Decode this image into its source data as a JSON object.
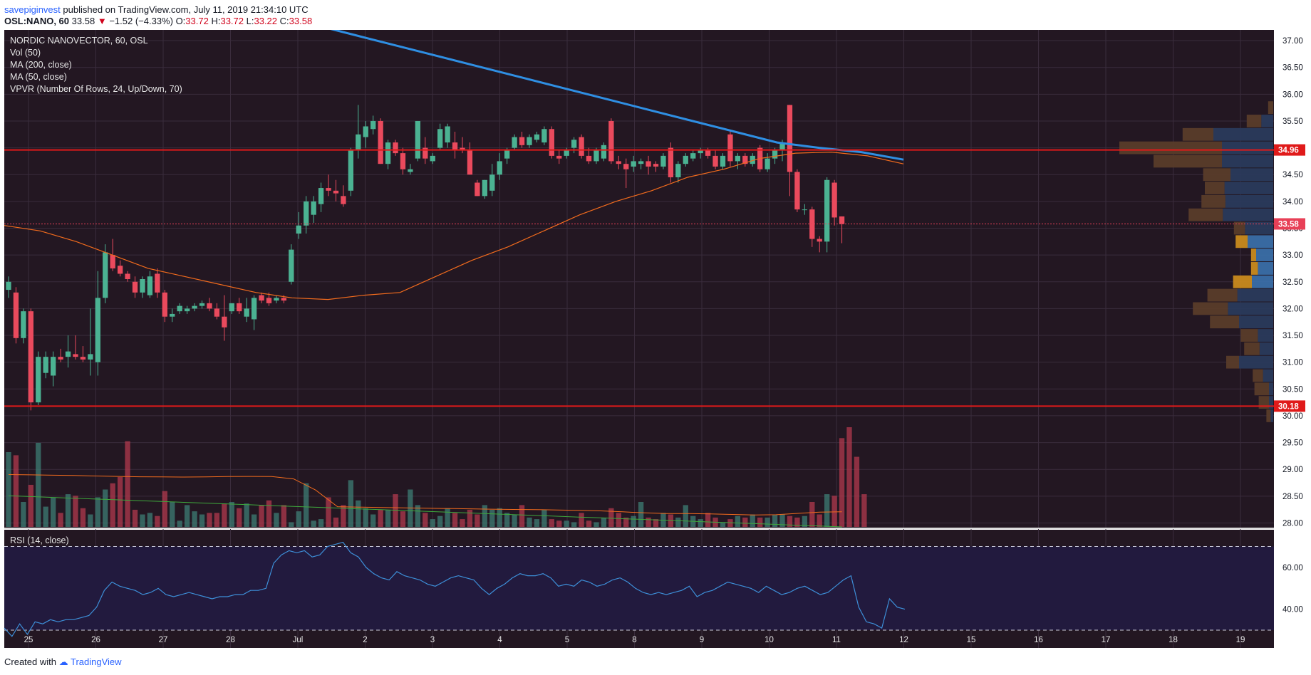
{
  "header": {
    "publisher": "savepiginvest",
    "published_text": "published on TradingView.com, July 11, 2019 21:34:10 UTC",
    "symbol": "OSL:NANO, 60",
    "last": "33.58",
    "arrow": "▼",
    "change": "−1.52 (−4.33%)",
    "open_label": "O:",
    "open": "33.72",
    "high_label": "H:",
    "high": "33.72",
    "low_label": "L:",
    "low": "33.22",
    "close_label": "C:",
    "close": "33.58"
  },
  "legend": [
    "NORDIC NANOVECTOR, 60, OSL",
    "Vol (50)",
    "MA (200, close)",
    "MA (50, close)",
    "VPVR (Number Of Rows, 24, Up/Down, 70)"
  ],
  "rsi_label": "RSI (14, close)",
  "footer": {
    "created_with": "Created with",
    "brand": "TradingView"
  },
  "colors": {
    "bg_main": "#231722",
    "bg_rsi": "#221a3e",
    "up": "#4bb292",
    "down": "#ea4a5d",
    "ma200": "#2f8fe3",
    "ma50": "#f26b1d",
    "rsi": "#3d8fd8",
    "level": "#e01a1a",
    "last_price": "#e84057"
  },
  "chart_data": {
    "type": "candlestick",
    "title": "NORDIC NANOVECTOR, 60, OSL",
    "x_ticks": [
      "25",
      "26",
      "27",
      "28",
      "Jul",
      "2",
      "3",
      "4",
      "5",
      "8",
      "9",
      "10",
      "11",
      "12",
      "15",
      "16",
      "17",
      "18",
      "19"
    ],
    "y_ticks": [
      "37.00",
      "36.50",
      "36.00",
      "35.50",
      "35.00",
      "34.50",
      "34.00",
      "33.50",
      "33.00",
      "32.50",
      "32.00",
      "31.50",
      "31.00",
      "30.50",
      "30.00",
      "29.50",
      "29.00",
      "28.50",
      "28.00"
    ],
    "ylim": [
      27.9,
      37.2
    ],
    "levels": [
      34.96,
      30.18
    ],
    "last_price": 33.58,
    "level_labels": [
      "34.96",
      "30.18"
    ],
    "last_price_label": "33.58",
    "days": [
      "25",
      "26",
      "27",
      "28",
      "Jul",
      "2",
      "3",
      "4",
      "5",
      "8",
      "9",
      "10",
      "11"
    ],
    "candles": [
      {
        "o": 32.35,
        "h": 32.6,
        "l": 32.2,
        "c": 32.5
      },
      {
        "o": 32.3,
        "h": 32.4,
        "l": 31.35,
        "c": 31.45
      },
      {
        "o": 31.45,
        "h": 32.0,
        "l": 31.35,
        "c": 31.95
      },
      {
        "o": 31.95,
        "h": 32.0,
        "l": 30.1,
        "c": 30.25
      },
      {
        "o": 30.25,
        "h": 31.2,
        "l": 30.2,
        "c": 31.1
      },
      {
        "o": 30.8,
        "h": 31.2,
        "l": 30.7,
        "c": 31.1
      },
      {
        "o": 30.75,
        "h": 31.2,
        "l": 30.55,
        "c": 31.1
      },
      {
        "o": 31.1,
        "h": 31.25,
        "l": 31.0,
        "c": 31.05
      },
      {
        "o": 31.1,
        "h": 31.5,
        "l": 30.9,
        "c": 31.2
      },
      {
        "o": 31.15,
        "h": 31.5,
        "l": 31.05,
        "c": 31.1
      },
      {
        "o": 31.1,
        "h": 31.3,
        "l": 31.0,
        "c": 31.05
      },
      {
        "o": 31.05,
        "h": 32.0,
        "l": 30.75,
        "c": 31.15
      },
      {
        "o": 31.0,
        "h": 32.7,
        "l": 30.75,
        "c": 32.2
      },
      {
        "o": 32.2,
        "h": 33.2,
        "l": 32.1,
        "c": 33.05
      },
      {
        "o": 33.0,
        "h": 33.3,
        "l": 32.7,
        "c": 32.75
      },
      {
        "o": 32.8,
        "h": 32.9,
        "l": 32.6,
        "c": 32.65
      },
      {
        "o": 32.65,
        "h": 32.7,
        "l": 32.5,
        "c": 32.55
      },
      {
        "o": 32.5,
        "h": 32.6,
        "l": 32.2,
        "c": 32.3
      },
      {
        "o": 32.3,
        "h": 32.6,
        "l": 32.2,
        "c": 32.55
      },
      {
        "o": 32.25,
        "h": 32.7,
        "l": 32.2,
        "c": 32.6
      },
      {
        "o": 32.65,
        "h": 32.75,
        "l": 32.2,
        "c": 32.3
      },
      {
        "o": 32.3,
        "h": 32.35,
        "l": 31.75,
        "c": 31.85
      },
      {
        "o": 31.85,
        "h": 32.0,
        "l": 31.75,
        "c": 31.9
      },
      {
        "o": 31.95,
        "h": 32.1,
        "l": 31.9,
        "c": 32.05
      },
      {
        "o": 31.95,
        "h": 32.05,
        "l": 31.9,
        "c": 32.0
      },
      {
        "o": 32.0,
        "h": 32.1,
        "l": 31.95,
        "c": 32.05
      },
      {
        "o": 32.05,
        "h": 32.15,
        "l": 32.0,
        "c": 32.1
      },
      {
        "o": 32.1,
        "h": 32.2,
        "l": 31.95,
        "c": 32.0
      },
      {
        "o": 32.0,
        "h": 32.1,
        "l": 31.8,
        "c": 31.85
      },
      {
        "o": 31.85,
        "h": 32.25,
        "l": 31.4,
        "c": 31.65
      },
      {
        "o": 31.95,
        "h": 32.1,
        "l": 31.9,
        "c": 32.1
      },
      {
        "o": 32.1,
        "h": 32.2,
        "l": 31.9,
        "c": 31.95
      },
      {
        "o": 31.85,
        "h": 32.2,
        "l": 31.75,
        "c": 32.0
      },
      {
        "o": 31.8,
        "h": 32.25,
        "l": 31.6,
        "c": 32.2
      },
      {
        "o": 32.25,
        "h": 32.3,
        "l": 32.1,
        "c": 32.15
      },
      {
        "o": 32.2,
        "h": 32.3,
        "l": 32.05,
        "c": 32.1
      },
      {
        "o": 32.15,
        "h": 32.25,
        "l": 32.1,
        "c": 32.2
      },
      {
        "o": 32.2,
        "h": 32.25,
        "l": 32.1,
        "c": 32.15
      },
      {
        "o": 32.5,
        "h": 33.2,
        "l": 32.45,
        "c": 33.1
      },
      {
        "o": 33.4,
        "h": 33.8,
        "l": 33.3,
        "c": 33.55
      },
      {
        "o": 33.55,
        "h": 34.1,
        "l": 33.4,
        "c": 34.0
      },
      {
        "o": 33.75,
        "h": 34.1,
        "l": 33.6,
        "c": 34.0
      },
      {
        "o": 33.95,
        "h": 34.35,
        "l": 33.8,
        "c": 34.25
      },
      {
        "o": 34.25,
        "h": 34.5,
        "l": 34.1,
        "c": 34.2
      },
      {
        "o": 34.2,
        "h": 34.4,
        "l": 34.0,
        "c": 34.15
      },
      {
        "o": 34.1,
        "h": 34.3,
        "l": 33.9,
        "c": 33.95
      },
      {
        "o": 34.2,
        "h": 35.0,
        "l": 34.1,
        "c": 34.95
      },
      {
        "o": 34.95,
        "h": 35.8,
        "l": 34.8,
        "c": 35.25
      },
      {
        "o": 35.2,
        "h": 35.5,
        "l": 35.0,
        "c": 35.4
      },
      {
        "o": 35.35,
        "h": 35.6,
        "l": 35.25,
        "c": 35.5
      },
      {
        "o": 35.5,
        "h": 35.55,
        "l": 34.7,
        "c": 34.7
      },
      {
        "o": 34.7,
        "h": 35.15,
        "l": 34.6,
        "c": 35.1
      },
      {
        "o": 35.1,
        "h": 35.15,
        "l": 34.85,
        "c": 34.9
      },
      {
        "o": 34.9,
        "h": 35.0,
        "l": 34.5,
        "c": 34.6
      },
      {
        "o": 34.55,
        "h": 34.7,
        "l": 34.5,
        "c": 34.6
      },
      {
        "o": 34.8,
        "h": 35.5,
        "l": 34.75,
        "c": 35.5
      },
      {
        "o": 35.0,
        "h": 35.2,
        "l": 34.7,
        "c": 34.8
      },
      {
        "o": 34.75,
        "h": 34.9,
        "l": 34.7,
        "c": 34.85
      },
      {
        "o": 35.0,
        "h": 35.45,
        "l": 34.95,
        "c": 35.35
      },
      {
        "o": 35.1,
        "h": 35.45,
        "l": 35.0,
        "c": 35.4
      },
      {
        "o": 35.1,
        "h": 35.3,
        "l": 34.8,
        "c": 34.95
      },
      {
        "o": 35.0,
        "h": 35.2,
        "l": 34.9,
        "c": 34.95
      },
      {
        "o": 34.95,
        "h": 35.1,
        "l": 34.5,
        "c": 34.5
      },
      {
        "o": 34.35,
        "h": 34.4,
        "l": 34.1,
        "c": 34.1
      },
      {
        "o": 34.1,
        "h": 34.4,
        "l": 34.05,
        "c": 34.4
      },
      {
        "o": 34.2,
        "h": 34.7,
        "l": 34.1,
        "c": 34.5
      },
      {
        "o": 34.5,
        "h": 34.9,
        "l": 34.4,
        "c": 34.75
      },
      {
        "o": 34.8,
        "h": 35.0,
        "l": 34.7,
        "c": 34.95
      },
      {
        "o": 35.0,
        "h": 35.25,
        "l": 34.95,
        "c": 35.2
      },
      {
        "o": 35.2,
        "h": 35.3,
        "l": 35.0,
        "c": 35.05
      },
      {
        "o": 35.05,
        "h": 35.25,
        "l": 35.0,
        "c": 35.2
      },
      {
        "o": 35.15,
        "h": 35.3,
        "l": 35.1,
        "c": 35.25
      },
      {
        "o": 35.1,
        "h": 35.4,
        "l": 35.05,
        "c": 35.35
      },
      {
        "o": 35.35,
        "h": 35.4,
        "l": 34.8,
        "c": 34.85
      },
      {
        "o": 34.85,
        "h": 34.95,
        "l": 34.7,
        "c": 34.8
      },
      {
        "o": 34.85,
        "h": 35.0,
        "l": 34.8,
        "c": 34.95
      },
      {
        "o": 35.0,
        "h": 35.2,
        "l": 34.9,
        "c": 35.15
      },
      {
        "o": 35.2,
        "h": 35.25,
        "l": 34.8,
        "c": 34.85
      },
      {
        "o": 34.85,
        "h": 35.0,
        "l": 34.7,
        "c": 34.75
      },
      {
        "o": 34.75,
        "h": 35.0,
        "l": 34.7,
        "c": 34.95
      },
      {
        "o": 34.8,
        "h": 35.1,
        "l": 34.75,
        "c": 35.05
      },
      {
        "o": 35.5,
        "h": 35.55,
        "l": 34.7,
        "c": 34.75
      },
      {
        "o": 34.75,
        "h": 34.85,
        "l": 34.6,
        "c": 34.7
      },
      {
        "o": 34.7,
        "h": 34.8,
        "l": 34.25,
        "c": 34.6
      },
      {
        "o": 34.65,
        "h": 34.85,
        "l": 34.55,
        "c": 34.75
      },
      {
        "o": 34.7,
        "h": 34.8,
        "l": 34.6,
        "c": 34.75
      },
      {
        "o": 34.75,
        "h": 34.85,
        "l": 34.5,
        "c": 34.65
      },
      {
        "o": 34.7,
        "h": 34.75,
        "l": 34.55,
        "c": 34.65
      },
      {
        "o": 34.65,
        "h": 34.9,
        "l": 34.6,
        "c": 34.85
      },
      {
        "o": 35.0,
        "h": 35.1,
        "l": 34.35,
        "c": 34.45
      },
      {
        "o": 34.45,
        "h": 34.75,
        "l": 34.35,
        "c": 34.7
      },
      {
        "o": 34.7,
        "h": 34.9,
        "l": 34.65,
        "c": 34.85
      },
      {
        "o": 34.8,
        "h": 34.95,
        "l": 34.75,
        "c": 34.9
      },
      {
        "o": 34.9,
        "h": 35.0,
        "l": 34.8,
        "c": 34.95
      },
      {
        "o": 34.95,
        "h": 35.0,
        "l": 34.8,
        "c": 34.85
      },
      {
        "o": 34.85,
        "h": 34.95,
        "l": 34.6,
        "c": 34.65
      },
      {
        "o": 34.65,
        "h": 34.9,
        "l": 34.6,
        "c": 34.85
      },
      {
        "o": 35.25,
        "h": 35.3,
        "l": 34.65,
        "c": 34.75
      },
      {
        "o": 34.75,
        "h": 34.9,
        "l": 34.6,
        "c": 34.85
      },
      {
        "o": 34.85,
        "h": 34.9,
        "l": 34.65,
        "c": 34.7
      },
      {
        "o": 34.7,
        "h": 34.9,
        "l": 34.65,
        "c": 34.85
      },
      {
        "o": 35.0,
        "h": 35.05,
        "l": 34.55,
        "c": 34.6
      },
      {
        "o": 34.6,
        "h": 34.9,
        "l": 34.55,
        "c": 34.8
      },
      {
        "o": 34.8,
        "h": 35.0,
        "l": 34.7,
        "c": 34.95
      },
      {
        "o": 34.95,
        "h": 35.15,
        "l": 34.75,
        "c": 35.1
      },
      {
        "o": 35.8,
        "h": 35.8,
        "l": 34.1,
        "c": 34.55
      },
      {
        "o": 34.55,
        "h": 34.6,
        "l": 33.8,
        "c": 33.85
      },
      {
        "o": 33.85,
        "h": 33.95,
        "l": 33.75,
        "c": 33.85
      },
      {
        "o": 33.85,
        "h": 33.9,
        "l": 33.15,
        "c": 33.3
      },
      {
        "o": 33.3,
        "h": 33.35,
        "l": 33.05,
        "c": 33.25
      },
      {
        "o": 33.25,
        "h": 34.45,
        "l": 33.05,
        "c": 34.4
      },
      {
        "o": 34.35,
        "h": 34.4,
        "l": 33.55,
        "c": 33.7
      },
      {
        "o": 33.72,
        "h": 33.72,
        "l": 33.22,
        "c": 33.58
      }
    ],
    "ma200": [
      37.3,
      37.1,
      36.9,
      36.7,
      36.5,
      36.3,
      36.1,
      35.9,
      35.7,
      35.5,
      35.3,
      35.1,
      35.0,
      34.92,
      34.78
    ],
    "ma50": [
      33.55,
      33.45,
      33.25,
      33.0,
      32.75,
      32.6,
      32.45,
      32.3,
      32.2,
      32.17,
      32.25,
      32.3,
      32.6,
      32.9,
      33.15,
      33.45,
      33.75,
      34.0,
      34.2,
      34.45,
      34.6,
      34.8,
      34.9,
      34.92,
      34.85,
      34.7
    ],
    "volume": [
      48,
      46,
      16,
      27,
      54,
      13,
      19,
      9,
      21,
      20,
      12,
      8,
      19,
      24,
      28,
      32,
      55,
      11,
      8,
      9,
      7,
      23,
      16,
      4,
      14,
      10,
      8,
      9,
      9,
      15,
      16,
      12,
      15,
      8,
      14,
      17,
      9,
      14,
      3,
      10,
      28,
      4,
      5,
      19,
      6,
      14,
      30,
      17,
      12,
      8,
      11,
      11,
      21,
      10,
      24,
      14,
      9,
      5,
      7,
      12,
      9,
      5,
      11,
      8,
      14,
      11,
      12,
      9,
      8,
      14,
      6,
      5,
      11,
      5,
      4,
      4,
      3,
      9,
      4,
      3,
      6,
      12,
      9,
      6,
      7,
      16,
      6,
      5,
      9,
      8,
      6,
      14,
      7,
      5,
      9,
      6,
      3,
      5,
      7,
      6,
      8,
      6,
      6,
      8,
      8,
      7,
      6,
      7,
      16,
      8,
      21,
      20,
      57,
      64,
      45,
      21
    ],
    "vol_ma": [
      33.6,
      33.4,
      33.2,
      33.0,
      32.7,
      32.4,
      32.2,
      32.1,
      32.0,
      32.1,
      32.3,
      32.4,
      32.3,
      30.8,
      23.7,
      13.0,
      12.7,
      12.5,
      12.2,
      12.0,
      11.8,
      11.6,
      11.4,
      11.2,
      11.1,
      10.9,
      10.6,
      10.3,
      9.7,
      9.0,
      8.6,
      8.6,
      8.3,
      8.0,
      7.7,
      7.8,
      8.7,
      9.5,
      9.7
    ],
    "rsi": [
      31,
      27,
      33,
      28,
      34,
      33,
      35,
      34,
      35,
      35,
      36,
      37,
      41,
      49,
      53,
      51,
      50,
      49,
      47,
      48,
      50,
      47,
      46,
      47,
      48,
      47,
      46,
      45,
      46,
      46,
      47,
      47,
      49,
      49,
      50,
      62,
      66,
      68,
      67,
      68,
      65,
      66,
      70,
      71,
      72,
      67,
      65,
      60,
      57,
      55,
      54,
      58,
      56,
      55,
      54,
      52,
      51,
      53,
      55,
      56,
      55,
      54,
      50,
      47,
      50,
      52,
      55,
      57,
      56,
      56,
      57,
      55,
      51,
      52,
      51,
      54,
      53,
      51,
      52,
      54,
      55,
      53,
      50,
      48,
      47,
      48,
      47,
      48,
      49,
      51,
      46,
      48,
      49,
      51,
      53,
      52,
      51,
      50,
      48,
      51,
      49,
      47,
      48,
      50,
      51,
      49,
      47,
      48,
      51,
      54,
      56,
      41,
      34,
      33,
      31,
      45,
      41,
      40
    ],
    "rsi_ticks": [
      "60.00",
      "40.00"
    ],
    "rsi_levels": [
      70,
      30
    ],
    "rsi_ylim": [
      21.5,
      78
    ],
    "vpvr_rows": [
      {
        "price": 35.75,
        "up": 0,
        "down": 6
      },
      {
        "price": 35.5,
        "up": 14,
        "down": 17
      },
      {
        "price": 35.25,
        "up": 70,
        "down": 36
      },
      {
        "price": 35.0,
        "up": 60,
        "down": 120
      },
      {
        "price": 34.75,
        "up": 60,
        "down": 80
      },
      {
        "price": 34.5,
        "up": 50,
        "down": 32
      },
      {
        "price": 34.25,
        "up": 57,
        "down": 23
      },
      {
        "price": 34.0,
        "up": 56,
        "down": 28
      },
      {
        "price": 33.75,
        "up": 59,
        "down": 40
      },
      {
        "price": 33.5,
        "up": 33,
        "down": 13
      },
      {
        "price": 33.25,
        "up": 30,
        "down": 14
      },
      {
        "price": 33.0,
        "up": 20,
        "down": 6
      },
      {
        "price": 32.75,
        "up": 18,
        "down": 8
      },
      {
        "price": 32.5,
        "up": 25,
        "down": 22
      },
      {
        "price": 32.25,
        "up": 42,
        "down": 35
      },
      {
        "price": 32.0,
        "up": 53,
        "down": 41
      },
      {
        "price": 31.75,
        "up": 40,
        "down": 34
      },
      {
        "price": 31.5,
        "up": 18,
        "down": 20
      },
      {
        "price": 31.25,
        "up": 16,
        "down": 18
      },
      {
        "price": 31.0,
        "up": 40,
        "down": 15
      },
      {
        "price": 30.75,
        "up": 12,
        "down": 12
      },
      {
        "price": 30.5,
        "up": 5,
        "down": 17
      },
      {
        "price": 30.25,
        "up": 5,
        "down": 12
      },
      {
        "price": 30.0,
        "up": 3,
        "down": 5
      }
    ]
  }
}
